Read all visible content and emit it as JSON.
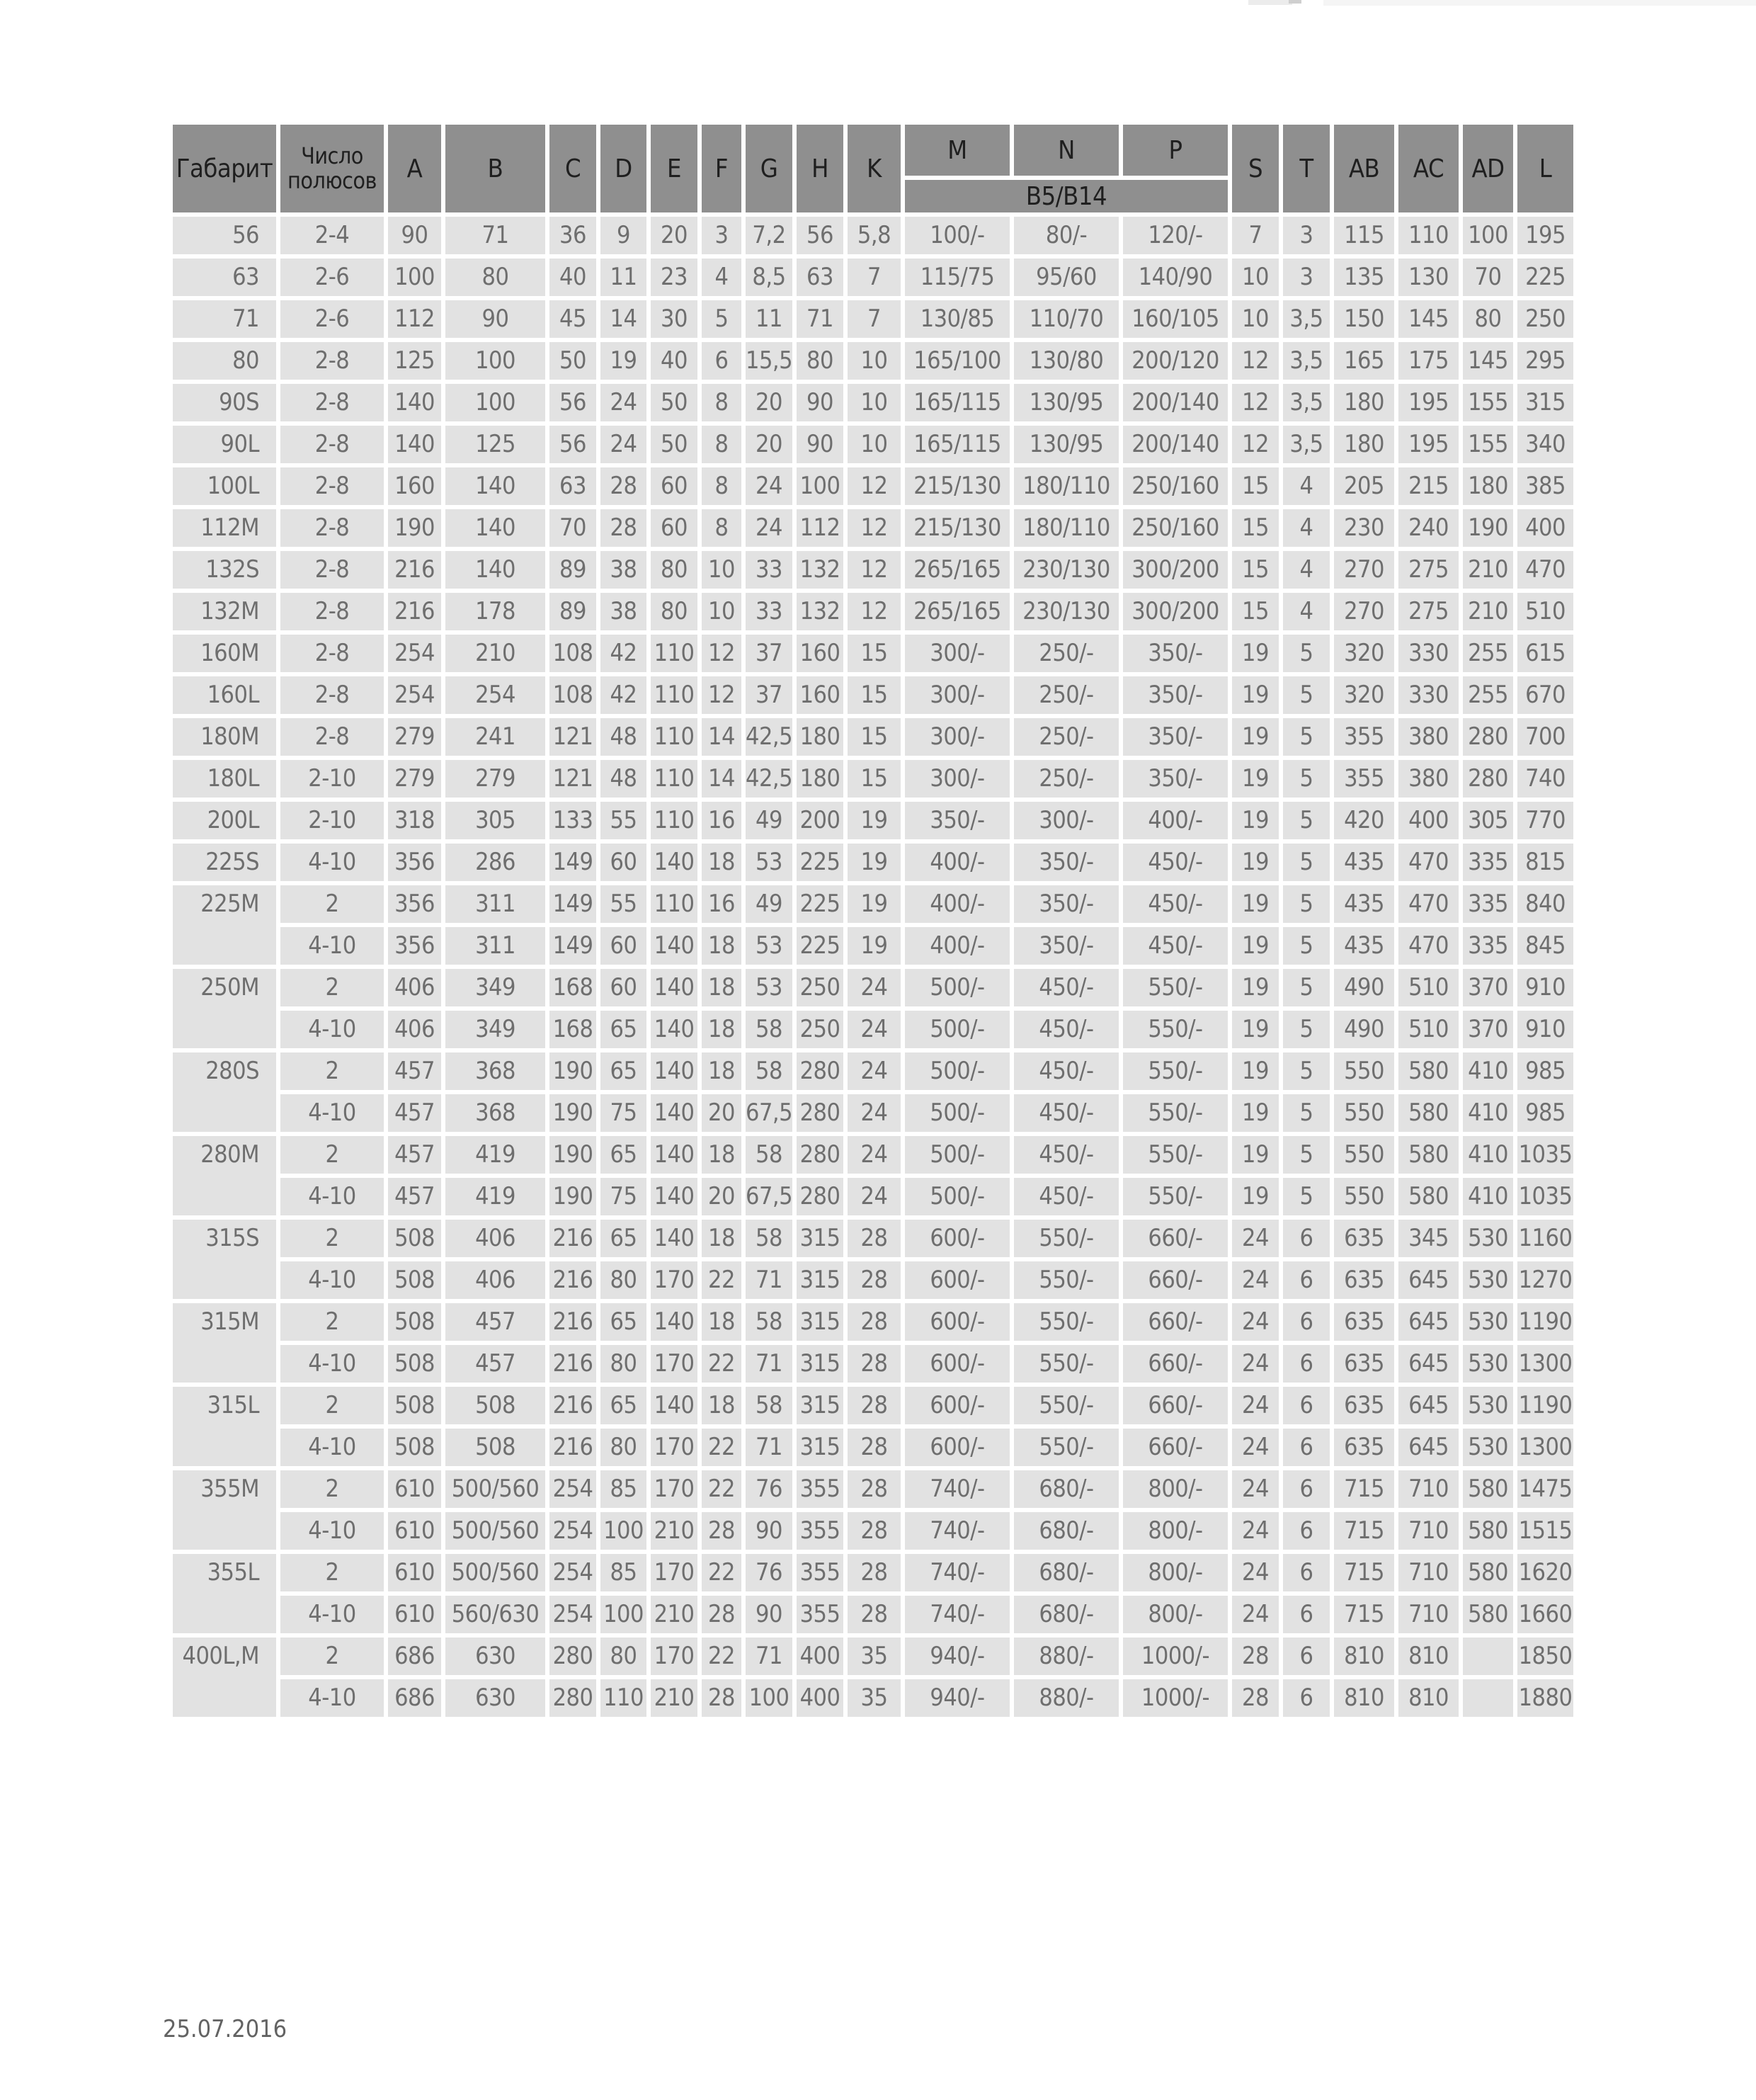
{
  "page": {
    "footer_date": "25.07.2016"
  },
  "colors": {
    "page_bg": "#ffffff",
    "header_bg": "#8f8f8f",
    "header_text": "#1f1f1f",
    "cell_bg": "#e2e2e2",
    "cell_text": "#6e6e6e",
    "date_text": "#636363"
  },
  "table": {
    "header": {
      "gabarit": "Габарит",
      "poles": "Число полюсов",
      "dims1": [
        "A",
        "B",
        "C",
        "D",
        "E",
        "F",
        "G",
        "H",
        "K"
      ],
      "flange": [
        "M",
        "N",
        "P"
      ],
      "flange_sub": "B5/B14",
      "dims2": [
        "S",
        "T",
        "AB",
        "AC",
        "AD",
        "L"
      ]
    },
    "col_keys": [
      "a",
      "b",
      "c",
      "d",
      "e",
      "f",
      "g",
      "h",
      "k",
      "m",
      "n",
      "p",
      "s",
      "t",
      "ab",
      "ac",
      "ad",
      "l"
    ],
    "rows": [
      {
        "size": "56",
        "span": 1,
        "poles": "2-4",
        "cells": [
          "90",
          "71",
          "36",
          "9",
          "20",
          "3",
          "7,2",
          "56",
          "5,8",
          "100/-",
          "80/-",
          "120/-",
          "7",
          "3",
          "115",
          "110",
          "100",
          "195"
        ]
      },
      {
        "size": "63",
        "span": 1,
        "poles": "2-6",
        "cells": [
          "100",
          "80",
          "40",
          "11",
          "23",
          "4",
          "8,5",
          "63",
          "7",
          "115/75",
          "95/60",
          "140/90",
          "10",
          "3",
          "135",
          "130",
          "70",
          "225"
        ]
      },
      {
        "size": "71",
        "span": 1,
        "poles": "2-6",
        "cells": [
          "112",
          "90",
          "45",
          "14",
          "30",
          "5",
          "11",
          "71",
          "7",
          "130/85",
          "110/70",
          "160/105",
          "10",
          "3,5",
          "150",
          "145",
          "80",
          "250"
        ]
      },
      {
        "size": "80",
        "span": 1,
        "poles": "2-8",
        "cells": [
          "125",
          "100",
          "50",
          "19",
          "40",
          "6",
          "15,5",
          "80",
          "10",
          "165/100",
          "130/80",
          "200/120",
          "12",
          "3,5",
          "165",
          "175",
          "145",
          "295"
        ]
      },
      {
        "size": "90S",
        "span": 1,
        "poles": "2-8",
        "cells": [
          "140",
          "100",
          "56",
          "24",
          "50",
          "8",
          "20",
          "90",
          "10",
          "165/115",
          "130/95",
          "200/140",
          "12",
          "3,5",
          "180",
          "195",
          "155",
          "315"
        ]
      },
      {
        "size": "90L",
        "span": 1,
        "poles": "2-8",
        "cells": [
          "140",
          "125",
          "56",
          "24",
          "50",
          "8",
          "20",
          "90",
          "10",
          "165/115",
          "130/95",
          "200/140",
          "12",
          "3,5",
          "180",
          "195",
          "155",
          "340"
        ]
      },
      {
        "size": "100L",
        "span": 1,
        "poles": "2-8",
        "cells": [
          "160",
          "140",
          "63",
          "28",
          "60",
          "8",
          "24",
          "100",
          "12",
          "215/130",
          "180/110",
          "250/160",
          "15",
          "4",
          "205",
          "215",
          "180",
          "385"
        ]
      },
      {
        "size": "112M",
        "span": 1,
        "poles": "2-8",
        "cells": [
          "190",
          "140",
          "70",
          "28",
          "60",
          "8",
          "24",
          "112",
          "12",
          "215/130",
          "180/110",
          "250/160",
          "15",
          "4",
          "230",
          "240",
          "190",
          "400"
        ]
      },
      {
        "size": "132S",
        "span": 1,
        "poles": "2-8",
        "cells": [
          "216",
          "140",
          "89",
          "38",
          "80",
          "10",
          "33",
          "132",
          "12",
          "265/165",
          "230/130",
          "300/200",
          "15",
          "4",
          "270",
          "275",
          "210",
          "470"
        ]
      },
      {
        "size": "132M",
        "span": 1,
        "poles": "2-8",
        "cells": [
          "216",
          "178",
          "89",
          "38",
          "80",
          "10",
          "33",
          "132",
          "12",
          "265/165",
          "230/130",
          "300/200",
          "15",
          "4",
          "270",
          "275",
          "210",
          "510"
        ]
      },
      {
        "size": "160M",
        "span": 1,
        "poles": "2-8",
        "cells": [
          "254",
          "210",
          "108",
          "42",
          "110",
          "12",
          "37",
          "160",
          "15",
          "300/-",
          "250/-",
          "350/-",
          "19",
          "5",
          "320",
          "330",
          "255",
          "615"
        ]
      },
      {
        "size": "160L",
        "span": 1,
        "poles": "2-8",
        "cells": [
          "254",
          "254",
          "108",
          "42",
          "110",
          "12",
          "37",
          "160",
          "15",
          "300/-",
          "250/-",
          "350/-",
          "19",
          "5",
          "320",
          "330",
          "255",
          "670"
        ]
      },
      {
        "size": "180M",
        "span": 1,
        "poles": "2-8",
        "cells": [
          "279",
          "241",
          "121",
          "48",
          "110",
          "14",
          "42,5",
          "180",
          "15",
          "300/-",
          "250/-",
          "350/-",
          "19",
          "5",
          "355",
          "380",
          "280",
          "700"
        ]
      },
      {
        "size": "180L",
        "span": 1,
        "poles": "2-10",
        "cells": [
          "279",
          "279",
          "121",
          "48",
          "110",
          "14",
          "42,5",
          "180",
          "15",
          "300/-",
          "250/-",
          "350/-",
          "19",
          "5",
          "355",
          "380",
          "280",
          "740"
        ]
      },
      {
        "size": "200L",
        "span": 1,
        "poles": "2-10",
        "cells": [
          "318",
          "305",
          "133",
          "55",
          "110",
          "16",
          "49",
          "200",
          "19",
          "350/-",
          "300/-",
          "400/-",
          "19",
          "5",
          "420",
          "400",
          "305",
          "770"
        ]
      },
      {
        "size": "225S",
        "span": 1,
        "poles": "4-10",
        "cells": [
          "356",
          "286",
          "149",
          "60",
          "140",
          "18",
          "53",
          "225",
          "19",
          "400/-",
          "350/-",
          "450/-",
          "19",
          "5",
          "435",
          "470",
          "335",
          "815"
        ]
      },
      {
        "size": "225M",
        "span": 2,
        "poles": "2",
        "cells": [
          "356",
          "311",
          "149",
          "55",
          "110",
          "16",
          "49",
          "225",
          "19",
          "400/-",
          "350/-",
          "450/-",
          "19",
          "5",
          "435",
          "470",
          "335",
          "840"
        ]
      },
      {
        "size": null,
        "span": 1,
        "poles": "4-10",
        "cells": [
          "356",
          "311",
          "149",
          "60",
          "140",
          "18",
          "53",
          "225",
          "19",
          "400/-",
          "350/-",
          "450/-",
          "19",
          "5",
          "435",
          "470",
          "335",
          "845"
        ]
      },
      {
        "size": "250M",
        "span": 2,
        "poles": "2",
        "cells": [
          "406",
          "349",
          "168",
          "60",
          "140",
          "18",
          "53",
          "250",
          "24",
          "500/-",
          "450/-",
          "550/-",
          "19",
          "5",
          "490",
          "510",
          "370",
          "910"
        ]
      },
      {
        "size": null,
        "span": 1,
        "poles": "4-10",
        "cells": [
          "406",
          "349",
          "168",
          "65",
          "140",
          "18",
          "58",
          "250",
          "24",
          "500/-",
          "450/-",
          "550/-",
          "19",
          "5",
          "490",
          "510",
          "370",
          "910"
        ]
      },
      {
        "size": "280S",
        "span": 2,
        "poles": "2",
        "cells": [
          "457",
          "368",
          "190",
          "65",
          "140",
          "18",
          "58",
          "280",
          "24",
          "500/-",
          "450/-",
          "550/-",
          "19",
          "5",
          "550",
          "580",
          "410",
          "985"
        ]
      },
      {
        "size": null,
        "span": 1,
        "poles": "4-10",
        "cells": [
          "457",
          "368",
          "190",
          "75",
          "140",
          "20",
          "67,5",
          "280",
          "24",
          "500/-",
          "450/-",
          "550/-",
          "19",
          "5",
          "550",
          "580",
          "410",
          "985"
        ]
      },
      {
        "size": "280M",
        "span": 2,
        "poles": "2",
        "cells": [
          "457",
          "419",
          "190",
          "65",
          "140",
          "18",
          "58",
          "280",
          "24",
          "500/-",
          "450/-",
          "550/-",
          "19",
          "5",
          "550",
          "580",
          "410",
          "1035"
        ]
      },
      {
        "size": null,
        "span": 1,
        "poles": "4-10",
        "cells": [
          "457",
          "419",
          "190",
          "75",
          "140",
          "20",
          "67,5",
          "280",
          "24",
          "500/-",
          "450/-",
          "550/-",
          "19",
          "5",
          "550",
          "580",
          "410",
          "1035"
        ]
      },
      {
        "size": "315S",
        "span": 2,
        "poles": "2",
        "cells": [
          "508",
          "406",
          "216",
          "65",
          "140",
          "18",
          "58",
          "315",
          "28",
          "600/-",
          "550/-",
          "660/-",
          "24",
          "6",
          "635",
          "345",
          "530",
          "1160"
        ]
      },
      {
        "size": null,
        "span": 1,
        "poles": "4-10",
        "cells": [
          "508",
          "406",
          "216",
          "80",
          "170",
          "22",
          "71",
          "315",
          "28",
          "600/-",
          "550/-",
          "660/-",
          "24",
          "6",
          "635",
          "645",
          "530",
          "1270"
        ]
      },
      {
        "size": "315M",
        "span": 2,
        "poles": "2",
        "cells": [
          "508",
          "457",
          "216",
          "65",
          "140",
          "18",
          "58",
          "315",
          "28",
          "600/-",
          "550/-",
          "660/-",
          "24",
          "6",
          "635",
          "645",
          "530",
          "1190"
        ]
      },
      {
        "size": null,
        "span": 1,
        "poles": "4-10",
        "cells": [
          "508",
          "457",
          "216",
          "80",
          "170",
          "22",
          "71",
          "315",
          "28",
          "600/-",
          "550/-",
          "660/-",
          "24",
          "6",
          "635",
          "645",
          "530",
          "1300"
        ]
      },
      {
        "size": "315L",
        "span": 2,
        "poles": "2",
        "cells": [
          "508",
          "508",
          "216",
          "65",
          "140",
          "18",
          "58",
          "315",
          "28",
          "600/-",
          "550/-",
          "660/-",
          "24",
          "6",
          "635",
          "645",
          "530",
          "1190"
        ]
      },
      {
        "size": null,
        "span": 1,
        "poles": "4-10",
        "cells": [
          "508",
          "508",
          "216",
          "80",
          "170",
          "22",
          "71",
          "315",
          "28",
          "600/-",
          "550/-",
          "660/-",
          "24",
          "6",
          "635",
          "645",
          "530",
          "1300"
        ]
      },
      {
        "size": "355M",
        "span": 2,
        "poles": "2",
        "cells": [
          "610",
          "500/560",
          "254",
          "85",
          "170",
          "22",
          "76",
          "355",
          "28",
          "740/-",
          "680/-",
          "800/-",
          "24",
          "6",
          "715",
          "710",
          "580",
          "1475"
        ]
      },
      {
        "size": null,
        "span": 1,
        "poles": "4-10",
        "cells": [
          "610",
          "500/560",
          "254",
          "100",
          "210",
          "28",
          "90",
          "355",
          "28",
          "740/-",
          "680/-",
          "800/-",
          "24",
          "6",
          "715",
          "710",
          "580",
          "1515"
        ]
      },
      {
        "size": "355L",
        "span": 2,
        "poles": "2",
        "cells": [
          "610",
          "500/560",
          "254",
          "85",
          "170",
          "22",
          "76",
          "355",
          "28",
          "740/-",
          "680/-",
          "800/-",
          "24",
          "6",
          "715",
          "710",
          "580",
          "1620"
        ]
      },
      {
        "size": null,
        "span": 1,
        "poles": "4-10",
        "cells": [
          "610",
          "560/630",
          "254",
          "100",
          "210",
          "28",
          "90",
          "355",
          "28",
          "740/-",
          "680/-",
          "800/-",
          "24",
          "6",
          "715",
          "710",
          "580",
          "1660"
        ]
      },
      {
        "size": "400L,M",
        "span": 2,
        "poles": "2",
        "cells": [
          "686",
          "630",
          "280",
          "80",
          "170",
          "22",
          "71",
          "400",
          "35",
          "940/-",
          "880/-",
          "1000/-",
          "28",
          "6",
          "810",
          "810",
          "",
          "1850"
        ]
      },
      {
        "size": null,
        "span": 1,
        "poles": "4-10",
        "cells": [
          "686",
          "630",
          "280",
          "110",
          "210",
          "28",
          "100",
          "400",
          "35",
          "940/-",
          "880/-",
          "1000/-",
          "28",
          "6",
          "810",
          "810",
          "",
          "1880"
        ]
      }
    ]
  }
}
